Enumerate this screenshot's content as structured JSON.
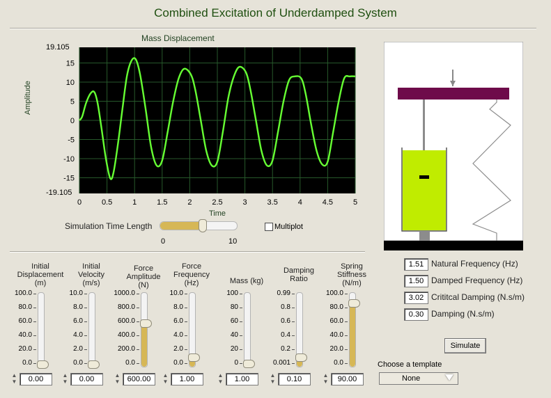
{
  "title": "Combined Excitation of Underdamped System",
  "plot": {
    "title": "Mass Displacement",
    "xlabel": "Time",
    "ylabel": "Amplitude",
    "y_top_label": "19.105",
    "y_bottom_label": "-19.105",
    "x_ticks": [
      "0",
      "0.5",
      "1",
      "1.5",
      "2",
      "2.5",
      "3",
      "3.5",
      "4",
      "4.5",
      "5"
    ],
    "y_ticks": [
      "15",
      "10",
      "5",
      "0",
      "-5",
      "-10",
      "-15"
    ],
    "background": "#000000",
    "grid_color": "#27592b",
    "trace_color": "#66ff33"
  },
  "chart_data": {
    "type": "line",
    "title": "Mass Displacement",
    "xlabel": "Time",
    "ylabel": "Amplitude",
    "xlim": [
      0,
      5
    ],
    "ylim": [
      -19.105,
      19.105
    ],
    "grid": true,
    "series": [
      {
        "x": [
          0,
          0.05,
          0.12,
          0.2,
          0.27,
          0.33,
          0.4,
          0.48,
          0.56,
          0.62,
          0.7,
          0.78,
          0.86,
          0.94,
          1.02,
          1.1,
          1.2,
          1.3,
          1.4,
          1.5,
          1.6,
          1.7,
          1.8,
          1.9,
          2.02,
          2.1,
          2.2,
          2.3,
          2.4,
          2.5,
          2.6,
          2.7,
          2.8,
          2.9,
          3.02,
          3.1,
          3.2,
          3.3,
          3.4,
          3.5,
          3.6,
          3.7,
          3.8,
          3.9,
          4.02,
          4.1,
          4.2,
          4.3,
          4.4,
          4.5,
          4.6,
          4.7,
          4.8,
          4.9,
          5.0
        ],
        "y": [
          0,
          1,
          4.5,
          7,
          7.4,
          4.5,
          -2,
          -10,
          -15.2,
          -13.5,
          -6,
          3,
          11.5,
          15.5,
          16,
          12,
          3,
          -7,
          -11.8,
          -10.5,
          -3,
          5,
          11,
          13.5,
          12,
          8,
          0,
          -8,
          -11.8,
          -10.8,
          -3,
          6,
          11.5,
          14,
          12.5,
          8,
          0,
          -8,
          -11.8,
          -10.5,
          -3,
          5,
          10.5,
          11.5,
          11,
          7,
          -1,
          -8,
          -11.5,
          -10.8,
          -3,
          5,
          11,
          11.5,
          11.5
        ]
      }
    ]
  },
  "sim_length": {
    "label": "Simulation Time Length",
    "min_label": "0",
    "max_label": "10",
    "value": 5.5,
    "max": 10
  },
  "multiplot": {
    "label": "Multiplot",
    "checked": false
  },
  "readouts": [
    {
      "value": "1.51",
      "label": "Natural Frequency (Hz)"
    },
    {
      "value": "1.50",
      "label": "Damped Frequency (Hz)"
    },
    {
      "value": "3.02",
      "label": "Crititcal Damping (N.s/m)"
    },
    {
      "value": "0.30",
      "label": "Damping (N.s/m)"
    }
  ],
  "simulate_label": "Simulate",
  "template": {
    "label": "Choose a template",
    "value": "None"
  },
  "sliders": [
    {
      "header": "Initial\nDisplacement\n(m)",
      "ticks": [
        "100.0",
        "80.0",
        "60.0",
        "40.0",
        "20.0",
        "0.0"
      ],
      "value": "0.00",
      "fraction": 0.0
    },
    {
      "header": "Initial\nVelocity\n(m/s)",
      "ticks": [
        "10.0",
        "8.0",
        "6.0",
        "4.0",
        "2.0",
        "0.0"
      ],
      "value": "0.00",
      "fraction": 0.0
    },
    {
      "header": "Force\nAmplitude\n(N)",
      "ticks": [
        "1000.0",
        "800.0",
        "600.0",
        "400.0",
        "200.0",
        "0.0"
      ],
      "value": "600.00",
      "fraction": 0.6
    },
    {
      "header": "Force\nFrequency\n(Hz)",
      "ticks": [
        "10.0",
        "8.0",
        "6.0",
        "4.0",
        "2.0",
        "0.0"
      ],
      "value": "1.00",
      "fraction": 0.1
    },
    {
      "header": "Mass (kg)",
      "ticks": [
        "100",
        "80",
        "60",
        "40",
        "20",
        "0"
      ],
      "value": "1.00",
      "fraction": 0.01
    },
    {
      "header": "Damping\nRatio",
      "ticks": [
        "0.99",
        "0.8",
        "0.6",
        "0.4",
        "0.2",
        "0.001"
      ],
      "value": "0.10",
      "fraction": 0.1
    },
    {
      "header": "Spring\nStiffness\n(N/m)",
      "ticks": [
        "100.0",
        "80.0",
        "60.0",
        "40.0",
        "20.0",
        "0.0"
      ],
      "value": "90.00",
      "fraction": 0.9
    }
  ],
  "animation": {
    "mass_color": "#6e0b4a",
    "fluid_color": "#c0ec00",
    "ground_color": "#000000"
  }
}
